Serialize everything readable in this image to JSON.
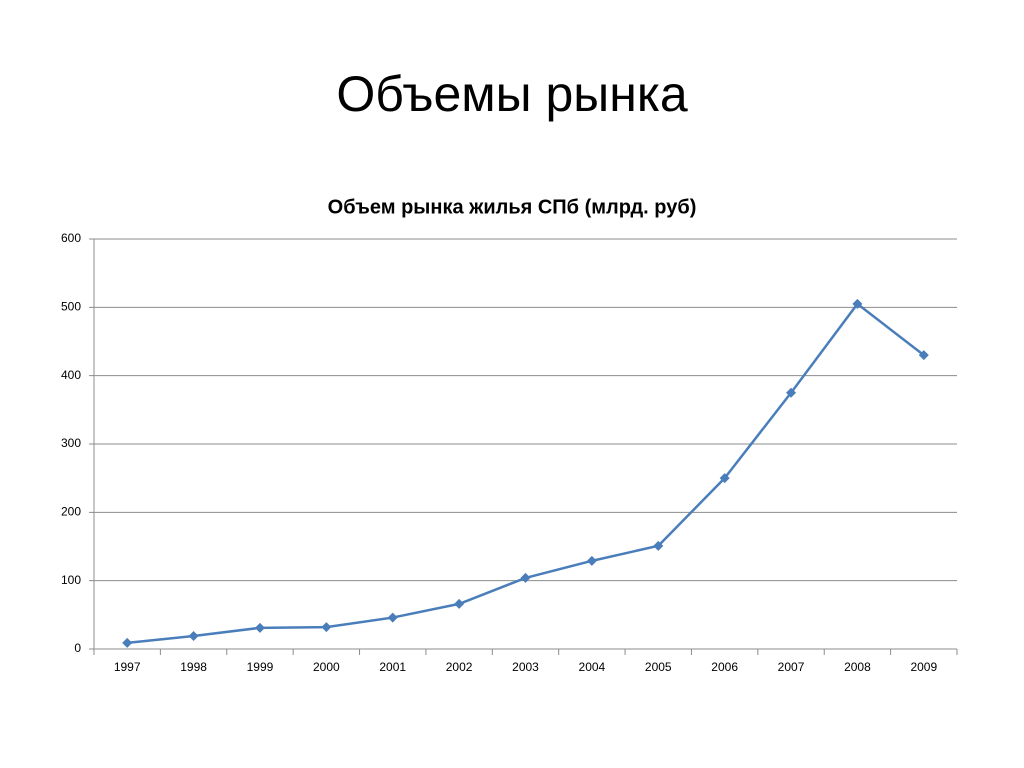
{
  "slide_title": "Объемы рынка",
  "chart_data": {
    "type": "line",
    "title": "Объем рынка жилья СПб (млрд. руб)",
    "categories": [
      "1997",
      "1998",
      "1999",
      "2000",
      "2001",
      "2002",
      "2003",
      "2004",
      "2005",
      "2006",
      "2007",
      "2008",
      "2009"
    ],
    "series": [
      {
        "color": "#4a7ebb",
        "values": [
          9,
          19,
          31,
          32,
          46,
          66,
          104,
          129,
          151,
          250,
          375,
          505,
          430
        ]
      }
    ],
    "ylim": [
      0,
      600
    ],
    "yticks": [
      0,
      100,
      200,
      300,
      400,
      500,
      600
    ],
    "grid": true
  }
}
